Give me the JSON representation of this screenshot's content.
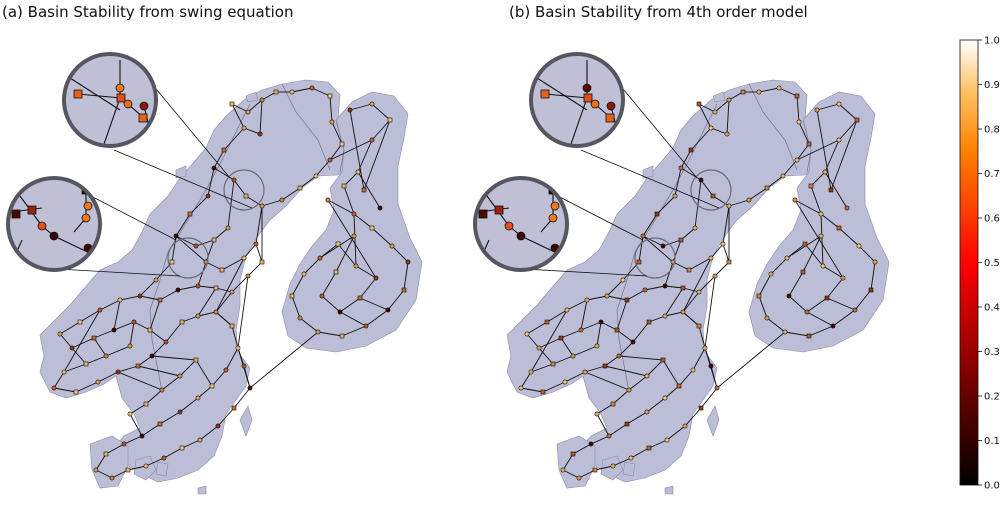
{
  "panels": [
    {
      "id": "a",
      "title": "(a) Basin Stability from swing equation"
    },
    {
      "id": "b",
      "title": "(b) Basin Stability from 4th order model"
    }
  ],
  "colorbar": {
    "colormap": "afmhot",
    "ticks": [
      "0.0",
      "0.1",
      "0.2",
      "0.3",
      "0.4",
      "0.5",
      "0.6",
      "0.7",
      "0.8",
      "0.9",
      "1.0"
    ],
    "min": 0.0,
    "max": 1.0
  },
  "colors": {
    "land": "#bcbdd6",
    "land_border": "#8a8ba8",
    "grid_line": "#111111",
    "zoom_ring": "#55565f",
    "zoom_fill": "#bfc0d6",
    "node_outline": "#1a0a00"
  }
}
